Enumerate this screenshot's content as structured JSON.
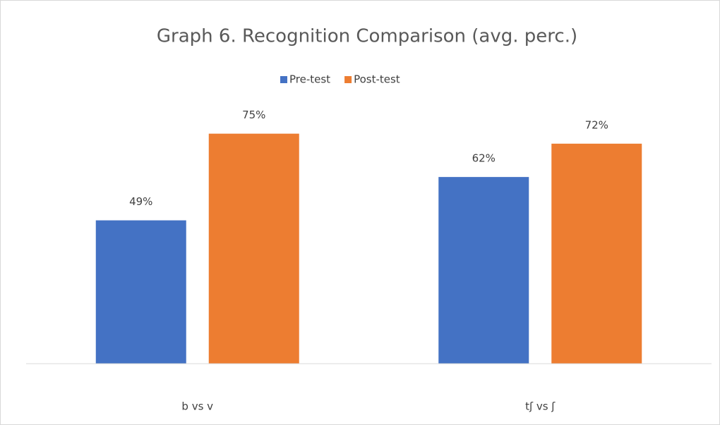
{
  "chart_data": {
    "type": "bar",
    "title": "Graph 6. Recognition Comparison (avg. perc.)",
    "categories": [
      "b vs v",
      "tʃ vs ʃ"
    ],
    "series": [
      {
        "name": "Pre-test",
        "color": "#4472c4",
        "values": [
          49,
          62
        ],
        "value_labels": [
          "49%",
          "62%"
        ]
      },
      {
        "name": "Post-test",
        "color": "#ed7d31",
        "values": [
          75,
          72
        ],
        "value_labels": [
          "75%",
          "72%"
        ]
      }
    ],
    "ylim": [
      6,
      80
    ],
    "legend": "top"
  }
}
